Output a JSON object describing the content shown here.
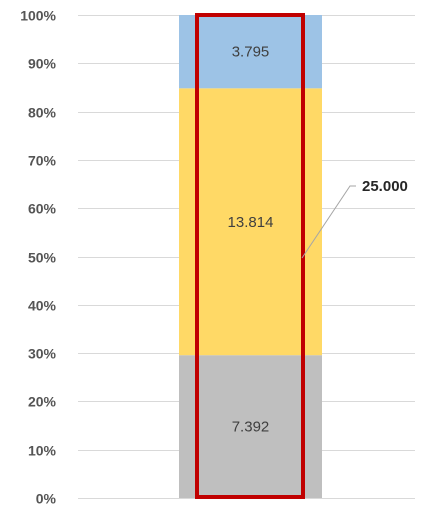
{
  "chart_data": {
    "type": "bar",
    "stacked": true,
    "normalized_percent": true,
    "categories": [
      ""
    ],
    "series": [
      {
        "values": [
          7.392
        ],
        "color": "#bfbfbf"
      },
      {
        "values": [
          13.814
        ],
        "color": "#ffd966"
      },
      {
        "values": [
          3.795
        ],
        "color": "#9dc3e6"
      }
    ],
    "ylim": [
      0,
      100
    ],
    "yticks": [
      "0%",
      "10%",
      "20%",
      "30%",
      "40%",
      "50%",
      "60%",
      "70%",
      "80%",
      "90%",
      "100%"
    ],
    "grid": true,
    "legend": "none",
    "annotation": {
      "text": "25.000",
      "highlight_color": "#c00000"
    }
  }
}
